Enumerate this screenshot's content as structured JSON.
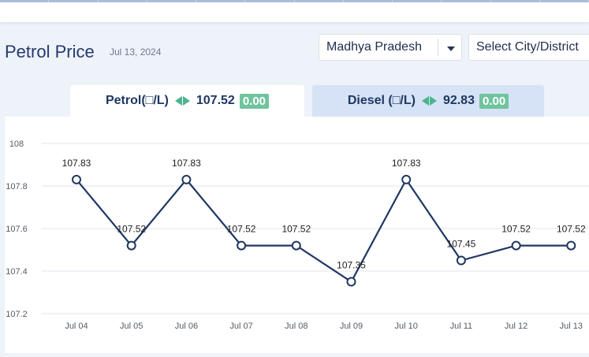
{
  "header": {
    "title": "Petrol Price",
    "date": "Jul 13, 2024"
  },
  "filters": {
    "state": "Madhya Pradesh",
    "city": "Select City/District"
  },
  "tabs": {
    "petrol": {
      "label": "Petrol(□/L)",
      "price": "107.52",
      "change": "0.00"
    },
    "diesel": {
      "label": "Diesel (□/L)",
      "price": "92.83",
      "change": "0.00"
    }
  },
  "colors": {
    "accent": "#1f3763",
    "change": "#6fc49d",
    "line": "#1f3763",
    "active_tab": "#ffffff",
    "inactive_tab": "#d6e2f5"
  },
  "icons": [
    "chevron-down-icon",
    "up-down-arrows-icon"
  ],
  "chart_data": {
    "type": "line",
    "categories": [
      "Jul 04",
      "Jul 05",
      "Jul 06",
      "Jul 07",
      "Jul 08",
      "Jul 09",
      "Jul 10",
      "Jul 11",
      "Jul 12",
      "Jul 13"
    ],
    "series": [
      {
        "values": [
          107.83,
          107.52,
          107.83,
          107.52,
          107.52,
          107.35,
          107.83,
          107.45,
          107.52,
          107.52
        ]
      }
    ],
    "data_labels": [
      "107.83",
      "107.52",
      "107.83",
      "107.52",
      "107.52",
      "107.35",
      "107.83",
      "107.45",
      "107.52",
      "107.52"
    ],
    "y_ticks": [
      "107.2",
      "107.4",
      "107.6",
      "107.8",
      "108"
    ],
    "ylim": [
      107.2,
      108
    ],
    "grid": true,
    "legend": "none"
  }
}
